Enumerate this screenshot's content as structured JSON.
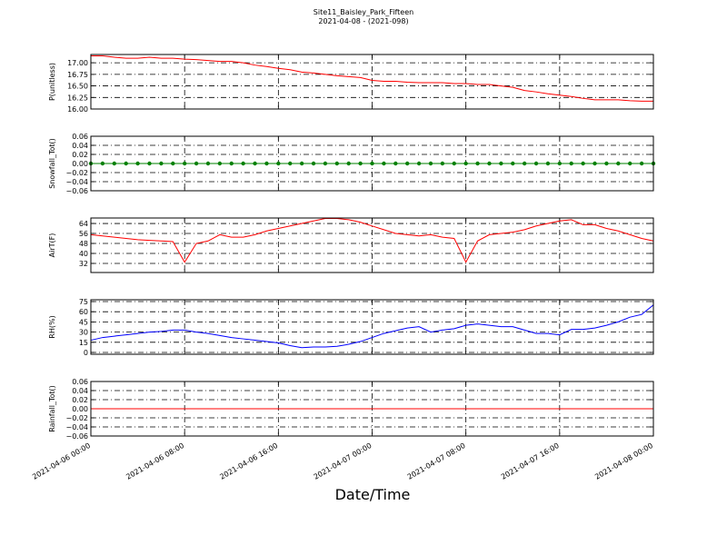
{
  "figure": {
    "title": "Site11_Baisley_Park_Fifteen",
    "subtitle": "2021-04-08 - (2021-098)",
    "x_label": "Date/Time",
    "x": [
      "2021-04-06 00:00",
      "2021-04-06 01:00",
      "2021-04-06 02:00",
      "2021-04-06 03:00",
      "2021-04-06 04:00",
      "2021-04-06 05:00",
      "2021-04-06 06:00",
      "2021-04-06 07:00",
      "2021-04-06 08:00",
      "2021-04-06 09:00",
      "2021-04-06 10:00",
      "2021-04-06 11:00",
      "2021-04-06 12:00",
      "2021-04-06 13:00",
      "2021-04-06 14:00",
      "2021-04-06 15:00",
      "2021-04-06 16:00",
      "2021-04-06 17:00",
      "2021-04-06 18:00",
      "2021-04-06 19:00",
      "2021-04-06 20:00",
      "2021-04-06 21:00",
      "2021-04-06 22:00",
      "2021-04-06 23:00",
      "2021-04-07 00:00",
      "2021-04-07 01:00",
      "2021-04-07 02:00",
      "2021-04-07 03:00",
      "2021-04-07 04:00",
      "2021-04-07 05:00",
      "2021-04-07 06:00",
      "2021-04-07 07:00",
      "2021-04-07 08:00",
      "2021-04-07 09:00",
      "2021-04-07 10:00",
      "2021-04-07 11:00",
      "2021-04-07 12:00",
      "2021-04-07 13:00",
      "2021-04-07 14:00",
      "2021-04-07 15:00",
      "2021-04-07 16:00",
      "2021-04-07 17:00",
      "2021-04-07 18:00",
      "2021-04-07 19:00",
      "2021-04-07 20:00",
      "2021-04-07 21:00",
      "2021-04-07 22:00",
      "2021-04-07 23:00",
      "2021-04-08 00:00"
    ],
    "xlim": [
      "2021-04-06 00:00",
      "2021-04-08 00:00"
    ],
    "xticks": [
      "2021-04-06 00:00",
      "2021-04-06 08:00",
      "2021-04-06 16:00",
      "2021-04-07 00:00",
      "2021-04-07 08:00",
      "2021-04-07 16:00",
      "2021-04-08 00:00"
    ]
  },
  "chart_data": [
    {
      "type": "line",
      "y_label": "P(unitless)",
      "ylim": [
        16.0,
        17.18
      ],
      "grid": true,
      "yticks": [
        {
          "value": 16,
          "label": "16.00"
        },
        16.25,
        {
          "value": 16.5,
          "label": "16.50"
        },
        16.75,
        {
          "value": 17,
          "label": "17.00"
        }
      ],
      "series": [
        {
          "color": "#ff0000",
          "values": [
            17.15,
            17.15,
            17.12,
            17.1,
            17.1,
            17.12,
            17.1,
            17.1,
            17.08,
            17.07,
            17.05,
            17.03,
            17.03,
            17.0,
            16.95,
            16.92,
            16.88,
            16.85,
            16.8,
            16.78,
            16.75,
            16.72,
            16.7,
            16.68,
            16.62,
            16.6,
            16.6,
            16.58,
            16.57,
            16.57,
            16.57,
            16.55,
            16.55,
            16.53,
            16.53,
            16.5,
            16.47,
            16.4,
            16.37,
            16.33,
            16.3,
            16.27,
            16.23,
            16.2,
            16.2,
            16.2,
            16.18,
            16.17,
            16.17
          ]
        }
      ]
    },
    {
      "type": "line",
      "y_label": "Snowfall_Tot()",
      "ylim": [
        -0.06,
        0.06
      ],
      "grid": true,
      "markers": true,
      "yticks": [
        {
          "value": -0.06,
          "label": "−0.06"
        },
        {
          "value": -0.04,
          "label": "−0.04"
        },
        {
          "value": -0.02,
          "label": "−0.02"
        },
        {
          "value": 0,
          "label": "0.00"
        },
        0.02,
        0.04,
        0.06
      ],
      "series": [
        {
          "color": "#008000",
          "values": [
            0,
            0,
            0,
            0,
            0,
            0,
            0,
            0,
            0,
            0,
            0,
            0,
            0,
            0,
            0,
            0,
            0,
            0,
            0,
            0,
            0,
            0,
            0,
            0,
            0,
            0,
            0,
            0,
            0,
            0,
            0,
            0,
            0,
            0,
            0,
            0,
            0,
            0,
            0,
            0,
            0,
            0,
            0,
            0,
            0,
            0,
            0,
            0,
            0
          ]
        }
      ]
    },
    {
      "type": "line",
      "y_label": "AirT(F)",
      "ylim": [
        24.7,
        68.4
      ],
      "grid": true,
      "yticks": [
        32,
        40,
        48,
        56,
        64
      ],
      "series": [
        {
          "color": "#ff0000",
          "values": [
            55,
            54,
            53,
            52,
            51,
            50.5,
            50,
            49.5,
            33,
            48,
            50,
            55,
            53,
            53,
            55,
            58,
            60,
            62,
            64,
            66,
            68,
            68,
            67,
            65,
            62,
            59,
            56,
            55,
            54,
            55,
            53,
            52,
            33,
            50,
            55,
            56,
            57,
            59,
            62,
            64,
            66,
            67,
            63,
            63,
            60,
            58,
            55,
            52,
            50
          ]
        }
      ]
    },
    {
      "type": "line",
      "y_label": "RH(%)",
      "ylim": [
        -2.7,
        77.7
      ],
      "grid": true,
      "yticks": [
        0,
        15,
        30,
        45,
        60,
        75
      ],
      "series": [
        {
          "color": "#0000ff",
          "values": [
            18,
            22,
            24,
            26,
            28,
            30,
            31,
            33,
            33,
            30,
            28,
            25,
            22,
            20,
            18,
            16,
            14,
            10,
            7,
            8,
            8,
            9,
            12,
            16,
            22,
            28,
            32,
            36,
            38,
            30,
            33,
            35,
            40,
            42,
            40,
            38,
            38,
            33,
            28,
            28,
            26,
            34,
            34,
            36,
            40,
            45,
            52,
            56,
            70
          ]
        }
      ]
    },
    {
      "type": "line",
      "y_label": "Rainfall_Tot()",
      "ylim": [
        -0.06,
        0.06
      ],
      "grid": true,
      "yticks": [
        {
          "value": -0.06,
          "label": "−0.06"
        },
        {
          "value": -0.04,
          "label": "−0.04"
        },
        {
          "value": -0.02,
          "label": "−0.02"
        },
        {
          "value": 0,
          "label": "0.00"
        },
        0.02,
        0.04,
        0.06
      ],
      "series": [
        {
          "color": "#ff0000",
          "values": [
            0,
            0,
            0,
            0,
            0,
            0,
            0,
            0,
            0,
            0,
            0,
            0,
            0,
            0,
            0,
            0,
            0,
            0,
            0,
            0,
            0,
            0,
            0,
            0,
            0,
            0,
            0,
            0,
            0,
            0,
            0,
            0,
            0,
            0,
            0,
            0,
            0,
            0,
            0,
            0,
            0,
            0,
            0,
            0,
            0,
            0,
            0,
            0,
            0
          ]
        }
      ]
    }
  ]
}
